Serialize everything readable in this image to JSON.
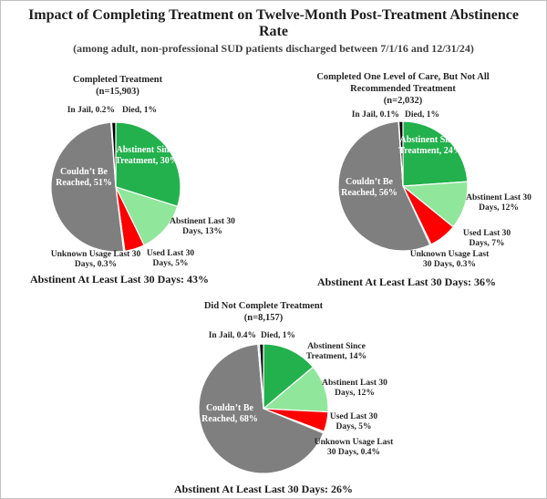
{
  "page": {
    "title": "Impact of Completing Treatment on Twelve-Month Post-Treatment Abstinence Rate",
    "subtitle": "(among adult, non-professional SUD patients discharged between 7/1/16 and 12/31/24)"
  },
  "colors": {
    "abstinent_since_treatment": "#22B14C",
    "abstinent_last_30_days": "#90E69B",
    "used_last_30_days": "#FF0000",
    "unknown_usage_last_30_days": "#FFFFFF",
    "couldnt_be_reached": "#7F7F7F",
    "in_jail": "#9DC3E6",
    "died": "#000000"
  },
  "chart_data": [
    {
      "type": "pie",
      "title": "Completed Treatment",
      "n_label": "(n=15,903)",
      "footer": "Abstinent At Least Last 30 Days: 43%",
      "legend": "none",
      "slices": [
        {
          "name": "Abstinent Since Treatment",
          "value": 30,
          "label": "Abstinent Since Treatment, 30%",
          "color": "#22B14C"
        },
        {
          "name": "Abstinent Last 30 Days",
          "value": 13,
          "label": "Abstinent Last 30 Days, 13%",
          "color": "#90E69B"
        },
        {
          "name": "Used Last 30 Days",
          "value": 5,
          "label": "Used Last 30 Days, 5%",
          "color": "#FF0000"
        },
        {
          "name": "Unknown Usage Last 30 Days",
          "value": 0.3,
          "label": "Unknown Usage Last 30 Days, 0.3%",
          "color": "#FFFFFF"
        },
        {
          "name": "Couldn’t Be Reached",
          "value": 51,
          "label": "Couldn’t Be Reached, 51%",
          "color": "#7F7F7F"
        },
        {
          "name": "In Jail",
          "value": 0.2,
          "label": "In Jail, 0.2%",
          "color": "#9DC3E6"
        },
        {
          "name": "Died",
          "value": 1,
          "label": "Died, 1%",
          "color": "#000000"
        }
      ]
    },
    {
      "type": "pie",
      "title": "Completed One Level of Care, But Not All Recommended Treatment",
      "n_label": "(n=2,032)",
      "footer": "Abstinent At Least Last 30 Days: 36%",
      "legend": "none",
      "slices": [
        {
          "name": "Abstinent Since Treatment",
          "value": 24,
          "label": "Abstinent Since Treatment, 24%",
          "color": "#22B14C"
        },
        {
          "name": "Abstinent Last 30 Days",
          "value": 12,
          "label": "Abstinent Last 30 Days, 12%",
          "color": "#90E69B"
        },
        {
          "name": "Used Last 30 Days",
          "value": 7,
          "label": "Used Last 30 Days, 7%",
          "color": "#FF0000"
        },
        {
          "name": "Unknown Usage Last 30 Days",
          "value": 0.3,
          "label": "Unknown Usage Last 30 Days, 0.3%",
          "color": "#FFFFFF"
        },
        {
          "name": "Couldn’t Be Reached",
          "value": 56,
          "label": "Couldn’t Be Reached, 56%",
          "color": "#7F7F7F"
        },
        {
          "name": "In Jail",
          "value": 0.1,
          "label": "In Jail, 0.1%",
          "color": "#9DC3E6"
        },
        {
          "name": "Died",
          "value": 1,
          "label": "Died, 1%",
          "color": "#000000"
        }
      ]
    },
    {
      "type": "pie",
      "title": "Did Not Complete Treatment",
      "n_label": "(n=8,157)",
      "footer": "Abstinent At Least Last 30 Days: 26%",
      "legend": "none",
      "slices": [
        {
          "name": "Abstinent Since Treatment",
          "value": 14,
          "label": "Abstinent Since Treatment, 14%",
          "color": "#22B14C"
        },
        {
          "name": "Abstinent Last 30 Days",
          "value": 12,
          "label": "Abstinent Last 30 Days, 12%",
          "color": "#90E69B"
        },
        {
          "name": "Used Last 30 Days",
          "value": 5,
          "label": "Used Last 30 Days, 5%",
          "color": "#FF0000"
        },
        {
          "name": "Unknown Usage Last 30 Days",
          "value": 0.4,
          "label": "Unknown Usage Last 30 Days, 0.4%",
          "color": "#FFFFFF"
        },
        {
          "name": "Couldn’t Be Reached",
          "value": 68,
          "label": "Couldn’t Be Reached, 68%",
          "color": "#7F7F7F"
        },
        {
          "name": "In Jail",
          "value": 0.4,
          "label": "In Jail, 0.4%",
          "color": "#9DC3E6"
        },
        {
          "name": "Died",
          "value": 1,
          "label": "Died, 1%",
          "color": "#000000"
        }
      ]
    }
  ]
}
